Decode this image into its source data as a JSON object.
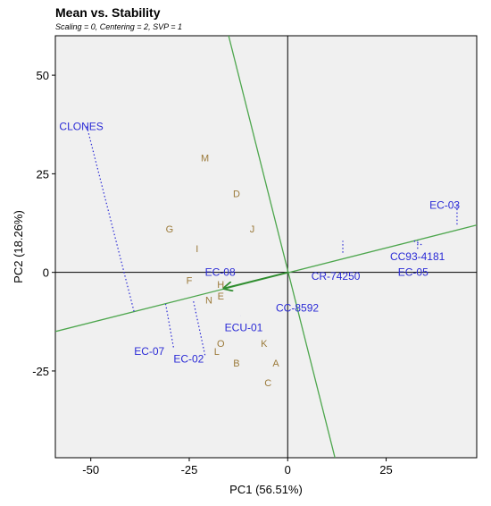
{
  "chart_data": {
    "type": "scatter",
    "title": "Mean vs. Stability",
    "subtitle": "Scaling = 0, Centering = 2, SVP = 1",
    "xlabel": "PC1 (56.51%)",
    "ylabel": "PC2 (18.26%)",
    "xlim": [
      -59,
      48
    ],
    "ylim": [
      -47,
      60
    ],
    "xticks": [
      -50,
      -25,
      0,
      25
    ],
    "yticks": [
      50,
      25,
      0,
      -25
    ],
    "colors": {
      "genotype": "#9B7A3A",
      "environment": "#2B2BD6",
      "axis_line": "#4DA64D",
      "arrow": "#2E8B2E",
      "background": "#F0F0F0"
    },
    "genotypes": [
      {
        "label": "M",
        "x": -21,
        "y": 29
      },
      {
        "label": "D",
        "x": -13,
        "y": 20
      },
      {
        "label": "G",
        "x": -30,
        "y": 11
      },
      {
        "label": "J",
        "x": -9,
        "y": 11
      },
      {
        "label": "I",
        "x": -23,
        "y": 6
      },
      {
        "label": "F",
        "x": -25,
        "y": -2
      },
      {
        "label": "H",
        "x": -17,
        "y": -3
      },
      {
        "label": "E",
        "x": -17,
        "y": -6
      },
      {
        "label": "N",
        "x": -20,
        "y": -7
      },
      {
        "label": "O",
        "x": -17,
        "y": -18
      },
      {
        "label": "L",
        "x": -18,
        "y": -20
      },
      {
        "label": "K",
        "x": -6,
        "y": -18
      },
      {
        "label": "B",
        "x": -13,
        "y": -23
      },
      {
        "label": "A",
        "x": -3,
        "y": -23
      },
      {
        "label": "C",
        "x": -5,
        "y": -28
      }
    ],
    "environments": [
      {
        "label": "CLONES",
        "x": -51,
        "y": 37,
        "lx": -58,
        "ly": 37,
        "end": [
          -39,
          -10
        ]
      },
      {
        "label": "EC-03",
        "x": 43,
        "y": 17,
        "lx": 36,
        "ly": 17,
        "end": [
          43,
          12
        ]
      },
      {
        "label": "CC93-4181",
        "x": 34,
        "y": 7,
        "lx": 26,
        "ly": 4,
        "end": [
          32,
          8
        ]
      },
      {
        "label": "EC-05",
        "x": 33,
        "y": 6,
        "lx": 28,
        "ly": 0,
        "end": [
          33,
          8
        ]
      },
      {
        "label": "CR-74250",
        "x": 14,
        "y": 5,
        "lx": 6,
        "ly": -1,
        "end": [
          14,
          8
        ]
      },
      {
        "label": "EC-08",
        "x": -16,
        "y": -2,
        "lx": -21,
        "ly": 0,
        "end": [
          -16,
          -2
        ]
      },
      {
        "label": "CC-8592",
        "x": 4,
        "y": -8,
        "lx": -3,
        "ly": -9,
        "end": [
          4,
          -8
        ]
      },
      {
        "label": "ECU-01",
        "x": -12,
        "y": -11,
        "lx": -16,
        "ly": -14,
        "end": [
          -12,
          -11
        ]
      },
      {
        "label": "EC-07",
        "x": -29,
        "y": -19,
        "lx": -39,
        "ly": -20,
        "end": [
          -31,
          -8
        ]
      },
      {
        "label": "EC-02",
        "x": -21,
        "y": -21,
        "lx": -29,
        "ly": -22,
        "end": [
          -24,
          -7
        ]
      }
    ],
    "mean_axis": {
      "from": [
        -59,
        -15
      ],
      "to": [
        48,
        12
      ]
    },
    "stability_axis": {
      "from": [
        -15,
        60
      ],
      "to": [
        12,
        -47
      ]
    },
    "arrow": {
      "from": [
        0,
        0
      ],
      "to": [
        -16,
        -4
      ]
    }
  }
}
